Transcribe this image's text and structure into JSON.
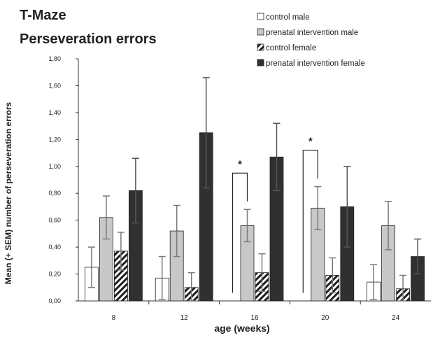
{
  "chart_data": {
    "type": "bar",
    "title": "T-Maze",
    "subtitle": "Perseveration errors",
    "xlabel": "age (weeks)",
    "ylabel": "Mean (+ SEM) number of perseveration errors",
    "ylim": [
      0,
      1.8
    ],
    "yticks": [
      "0,00",
      "0,20",
      "0,40",
      "0,60",
      "0,80",
      "1,00",
      "1,20",
      "1,40",
      "1,60",
      "1,80"
    ],
    "categories": [
      "8",
      "12",
      "16",
      "20",
      "24"
    ],
    "series": [
      {
        "name": "control male",
        "fill": "white",
        "values": [
          0.25,
          0.17,
          0.0,
          0.0,
          0.14
        ],
        "errors": [
          0.15,
          0.16,
          0.0,
          0.0,
          0.13
        ]
      },
      {
        "name": "prenatal intervention male",
        "fill": "light-gray",
        "values": [
          0.62,
          0.52,
          0.56,
          0.69,
          0.56
        ],
        "errors": [
          0.16,
          0.19,
          0.12,
          0.16,
          0.18
        ]
      },
      {
        "name": "control female",
        "fill": "hatched",
        "values": [
          0.37,
          0.1,
          0.21,
          0.19,
          0.09
        ],
        "errors": [
          0.14,
          0.11,
          0.14,
          0.13,
          0.1
        ]
      },
      {
        "name": "prenatal intervention female",
        "fill": "dark-gray",
        "values": [
          0.82,
          1.25,
          1.07,
          0.7,
          0.33
        ],
        "errors": [
          0.24,
          0.41,
          0.25,
          0.3,
          0.13
        ]
      }
    ],
    "significance": [
      {
        "category": "16",
        "label": "*",
        "from_series": 0,
        "to_series": 1
      },
      {
        "category": "20",
        "label": "*",
        "from_series": 0,
        "to_series": 1
      }
    ],
    "legend_position": "top-right",
    "grid": false,
    "colors": {
      "light_gray": "#c8c8c8",
      "dark_gray": "#303030",
      "error_light": "#7a7a7a",
      "error_dark": "#555555",
      "axis": "#333333"
    }
  }
}
